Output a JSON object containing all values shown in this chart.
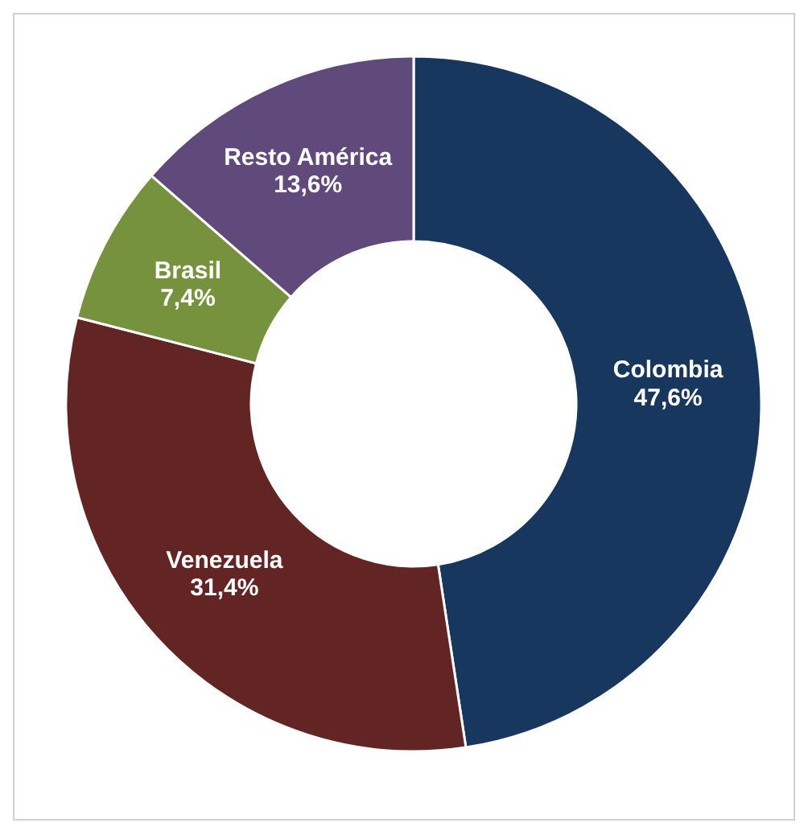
{
  "chart_data": {
    "type": "donut",
    "categories": [
      "Colombia",
      "Venezuela",
      "Brasil",
      "Resto América"
    ],
    "values": [
      47.6,
      31.4,
      7.4,
      13.6
    ],
    "colors": [
      "#17375e",
      "#632523",
      "#76923c",
      "#604a7b"
    ],
    "value_labels": [
      "47,6%",
      "31,4%",
      "7,4%",
      "13,6%"
    ]
  }
}
